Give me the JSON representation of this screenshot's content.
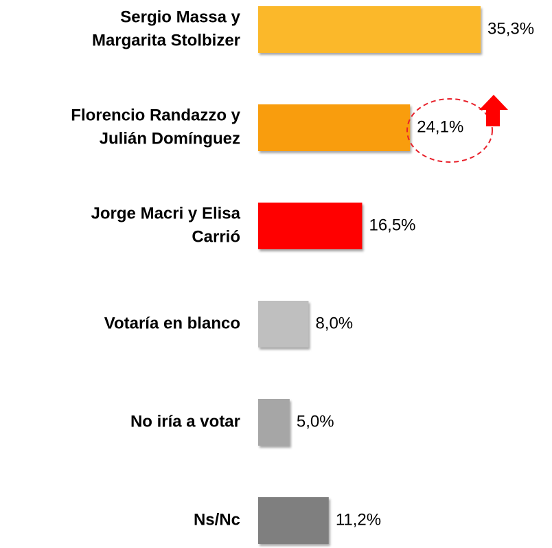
{
  "chart_data": {
    "type": "bar",
    "orientation": "horizontal",
    "categories": [
      [
        "Sergio Massa y",
        "Margarita Stolbizer"
      ],
      [
        "Florencio Randazzo y",
        "Julián Domínguez"
      ],
      [
        "Jorge Macri y Elisa",
        "Carrió"
      ],
      [
        "Votaría en blanco"
      ],
      [
        "No iría a votar"
      ],
      [
        "Ns/Nc"
      ]
    ],
    "values": [
      35.3,
      24.1,
      16.5,
      8.0,
      5.0,
      11.2
    ],
    "value_labels": [
      "35,3%",
      "24,1%",
      "16,5%",
      "8,0%",
      "5,0%",
      "11,2%"
    ],
    "colors": [
      "#FBB829",
      "#F99D07",
      "#FF0000",
      "#BFBFBF",
      "#A6A6A6",
      "#7F7F7F"
    ]
  }
}
